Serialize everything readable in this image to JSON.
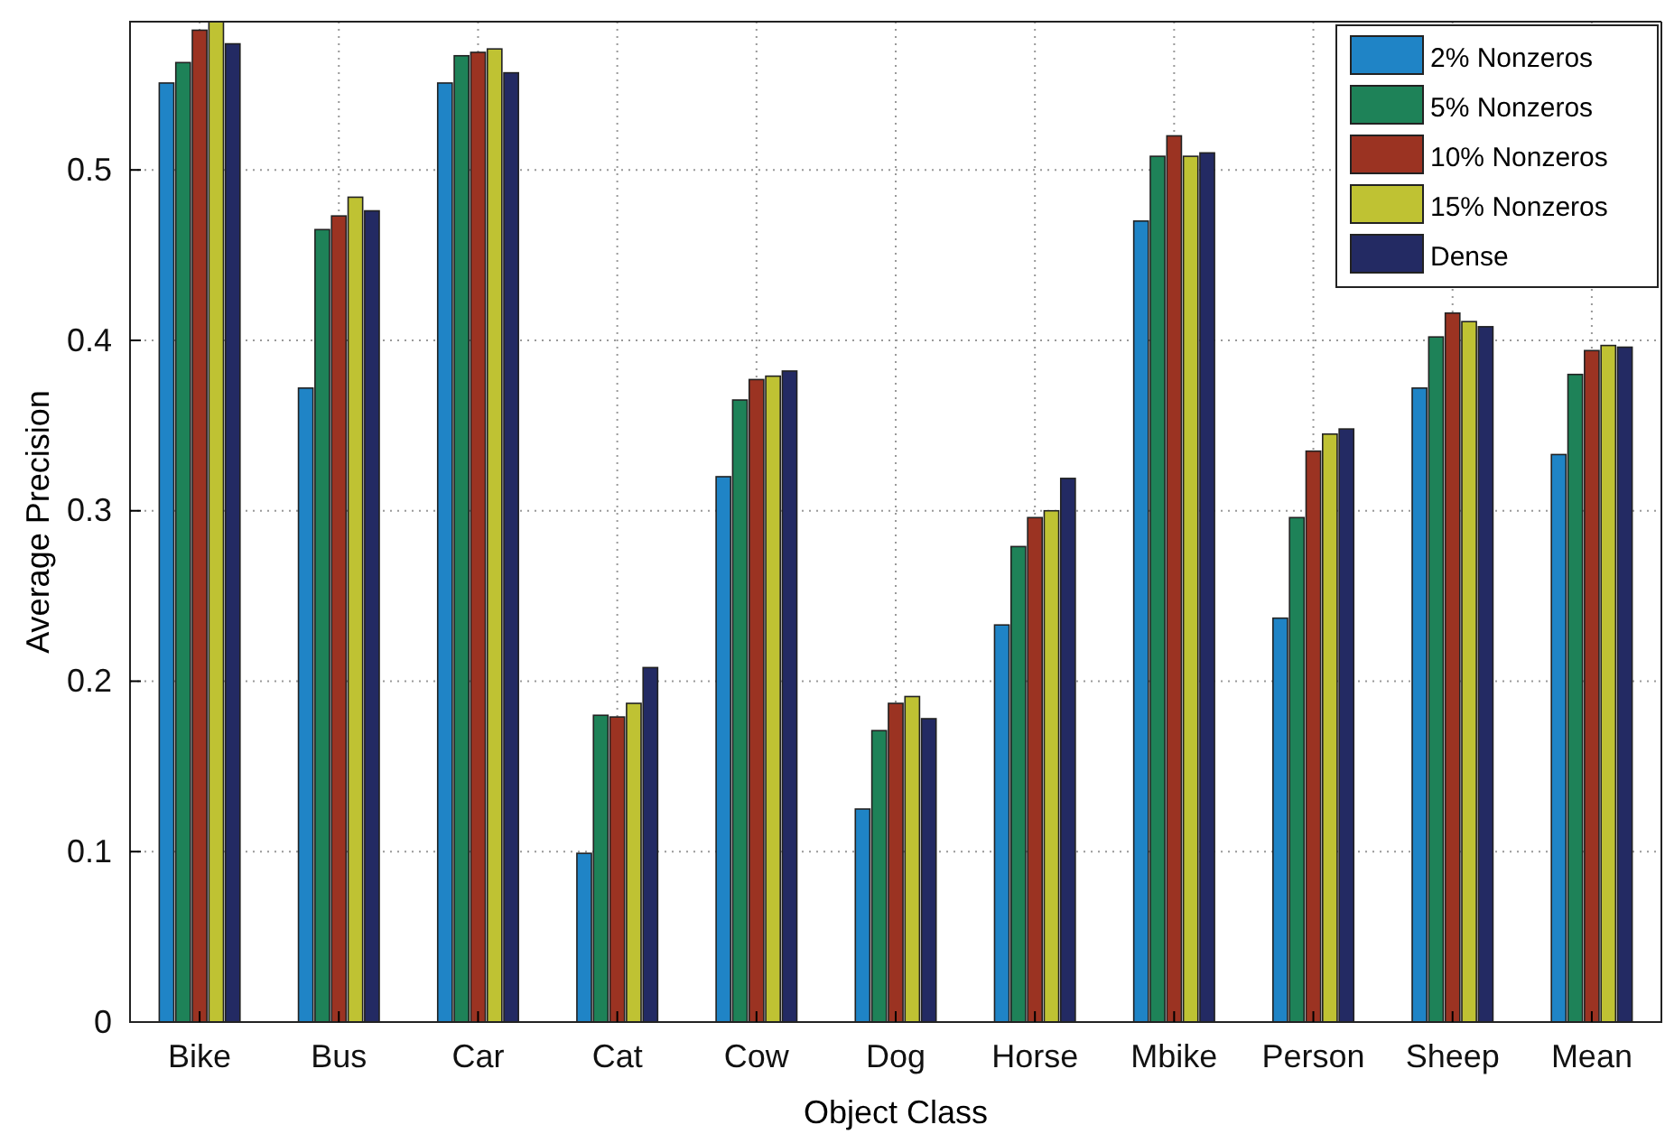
{
  "chart_data": {
    "type": "bar",
    "xlabel": "Object Class",
    "ylabel": "Average Precision",
    "categories": [
      "Bike",
      "Bus",
      "Car",
      "Cat",
      "Cow",
      "Dog",
      "Horse",
      "Mbike",
      "Person",
      "Sheep",
      "Mean"
    ],
    "series": [
      {
        "name": "2% Nonzeros",
        "color": "#1f84c6",
        "values": [
          0.551,
          0.372,
          0.551,
          0.099,
          0.32,
          0.125,
          0.233,
          0.47,
          0.237,
          0.372,
          0.333
        ]
      },
      {
        "name": "5% Nonzeros",
        "color": "#1e8258",
        "values": [
          0.563,
          0.465,
          0.567,
          0.18,
          0.365,
          0.171,
          0.279,
          0.508,
          0.296,
          0.402,
          0.38
        ]
      },
      {
        "name": "10% Nonzeros",
        "color": "#9b3322",
        "values": [
          0.582,
          0.473,
          0.569,
          0.179,
          0.377,
          0.187,
          0.296,
          0.52,
          0.335,
          0.416,
          0.394
        ]
      },
      {
        "name": "15% Nonzeros",
        "color": "#bfc233",
        "values": [
          0.587,
          0.484,
          0.571,
          0.187,
          0.379,
          0.191,
          0.3,
          0.508,
          0.345,
          0.411,
          0.397
        ]
      },
      {
        "name": "Dense",
        "color": "#232a63",
        "values": [
          0.574,
          0.476,
          0.557,
          0.208,
          0.382,
          0.178,
          0.319,
          0.51,
          0.348,
          0.408,
          0.396
        ]
      }
    ],
    "ylim": [
      0,
      0.587
    ],
    "yticks": [
      0,
      0.1,
      0.2,
      0.3,
      0.4,
      0.5
    ],
    "grid": true,
    "legend": "top right"
  }
}
